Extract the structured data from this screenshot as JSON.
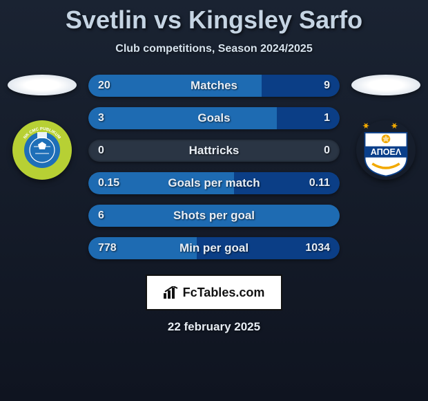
{
  "title": "Svetlin vs Kingsley Sarfo",
  "subtitle": "Club competitions, Season 2024/2025",
  "date": "22 february 2025",
  "branding": "FcTables.com",
  "left_team": {
    "crest_outer": "#b7d034",
    "crest_inner": "#1e6fb8",
    "crest_text": "NK CMC PUBLIKUM",
    "crest_text_color": "#ffffff"
  },
  "right_team": {
    "crest_outer": "#ffffff",
    "crest_band": "#0a3f8a",
    "crest_text": "ΑΠΟΕΛ",
    "crest_text_color": "#ffffff",
    "star_color": "#f2a900"
  },
  "left_fill_color": "#1e6fb8",
  "right_fill_color": "#0a3f8a",
  "bar_bg": "#2a3544",
  "rows": [
    {
      "left": "20",
      "label": "Matches",
      "right": "9",
      "left_pct": 69,
      "right_pct": 31
    },
    {
      "left": "3",
      "label": "Goals",
      "right": "1",
      "left_pct": 75,
      "right_pct": 25
    },
    {
      "left": "0",
      "label": "Hattricks",
      "right": "0",
      "left_pct": 0,
      "right_pct": 0
    },
    {
      "left": "0.15",
      "label": "Goals per match",
      "right": "0.11",
      "left_pct": 58,
      "right_pct": 42
    },
    {
      "left": "6",
      "label": "Shots per goal",
      "right": "",
      "left_pct": 100,
      "right_pct": 0
    },
    {
      "left": "778",
      "label": "Min per goal",
      "right": "1034",
      "left_pct": 43,
      "right_pct": 57
    }
  ]
}
